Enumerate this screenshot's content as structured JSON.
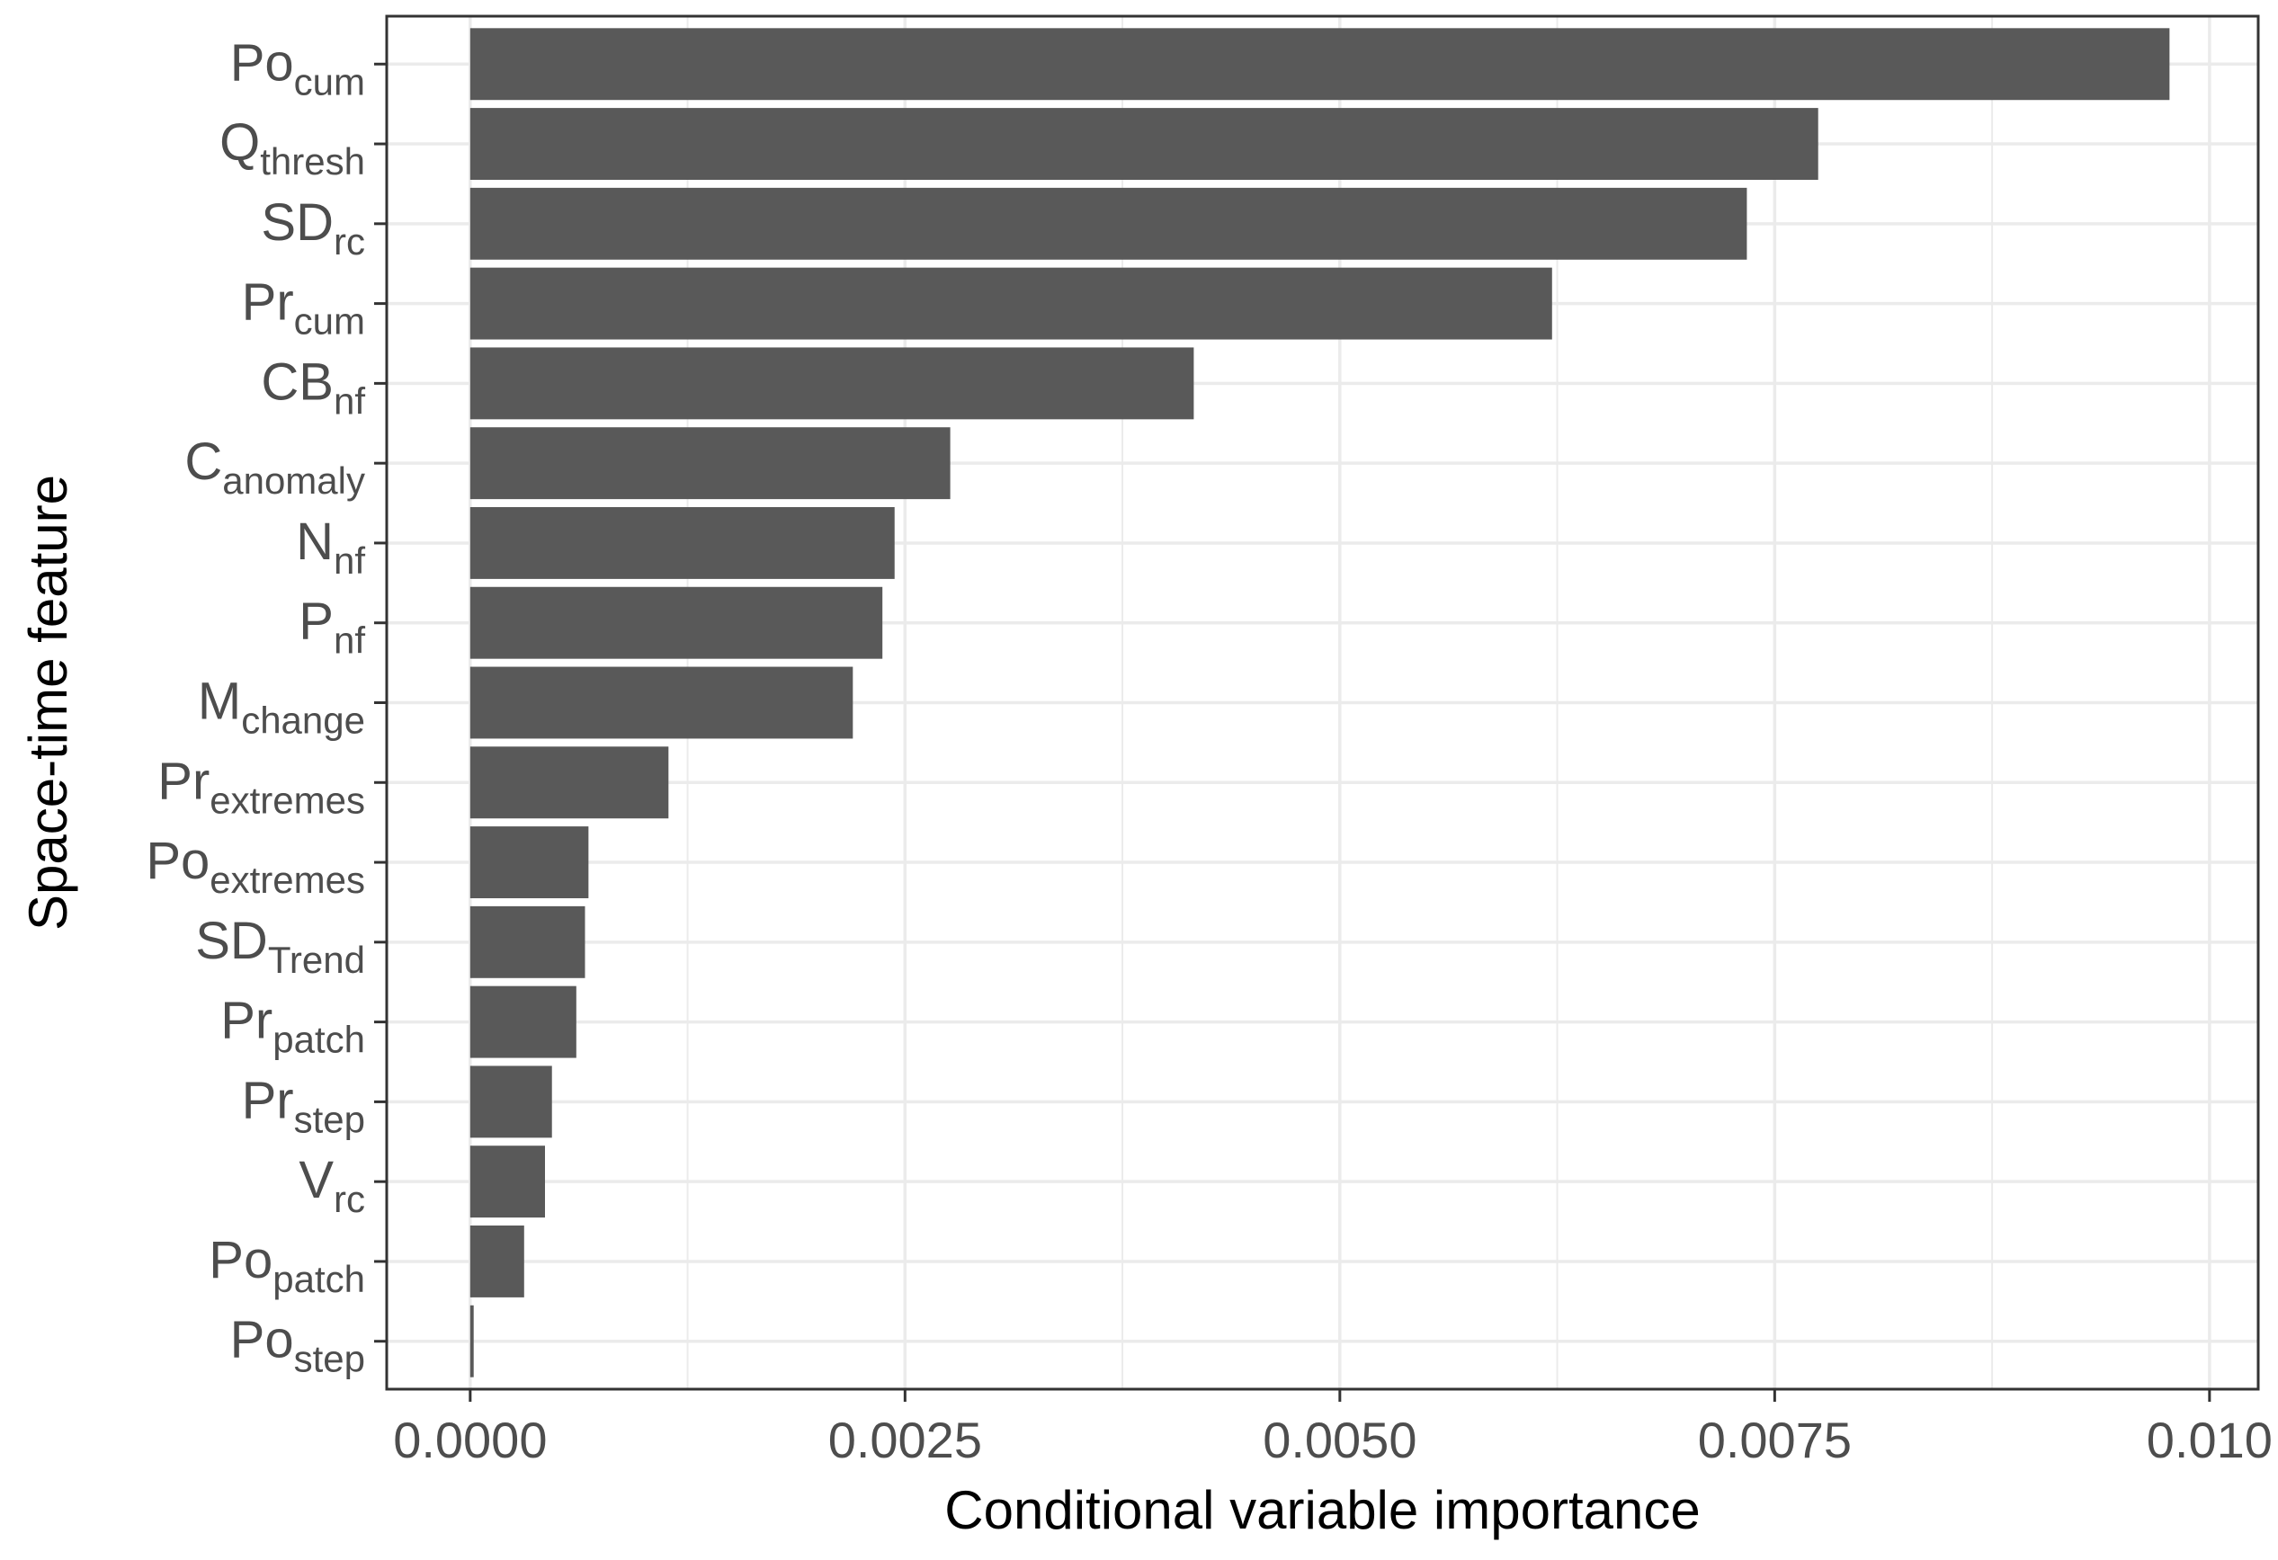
{
  "chart_data": {
    "type": "bar",
    "orientation": "horizontal",
    "title": "",
    "xlabel": "Conditional variable importance",
    "ylabel": "Space-time feature",
    "categories": [
      {
        "base": "Po",
        "sub": "cum"
      },
      {
        "base": "Q",
        "sub": "thresh"
      },
      {
        "base": "SD",
        "sub": "rc"
      },
      {
        "base": "Pr",
        "sub": "cum"
      },
      {
        "base": "CB",
        "sub": "nf"
      },
      {
        "base": "C",
        "sub": "anomaly"
      },
      {
        "base": "N",
        "sub": "nf"
      },
      {
        "base": "P",
        "sub": "nf"
      },
      {
        "base": "M",
        "sub": "change"
      },
      {
        "base": "Pr",
        "sub": "extremes"
      },
      {
        "base": "Po",
        "sub": "extremes"
      },
      {
        "base": "SD",
        "sub": "Trend"
      },
      {
        "base": "Pr",
        "sub": "patch"
      },
      {
        "base": "Pr",
        "sub": "step"
      },
      {
        "base": "V",
        "sub": "rc"
      },
      {
        "base": "Po",
        "sub": "patch"
      },
      {
        "base": "Po",
        "sub": "step"
      }
    ],
    "values": [
      0.00977,
      0.00775,
      0.00734,
      0.00622,
      0.00416,
      0.00276,
      0.00244,
      0.00237,
      0.0022,
      0.00114,
      0.00068,
      0.00066,
      0.00061,
      0.00047,
      0.00043,
      0.00031,
      2e-05
    ],
    "xlim": [
      -0.00048,
      0.01028
    ],
    "xticks": [
      0,
      0.0025,
      0.005,
      0.0075,
      0.01
    ],
    "xtick_labels": [
      "0.0000",
      "0.0025",
      "0.0050",
      "0.0075",
      "0.010"
    ],
    "grid": true,
    "bar_color": "#595959",
    "grid_color": "#ebebeb",
    "panel_border_color": "#333333"
  }
}
